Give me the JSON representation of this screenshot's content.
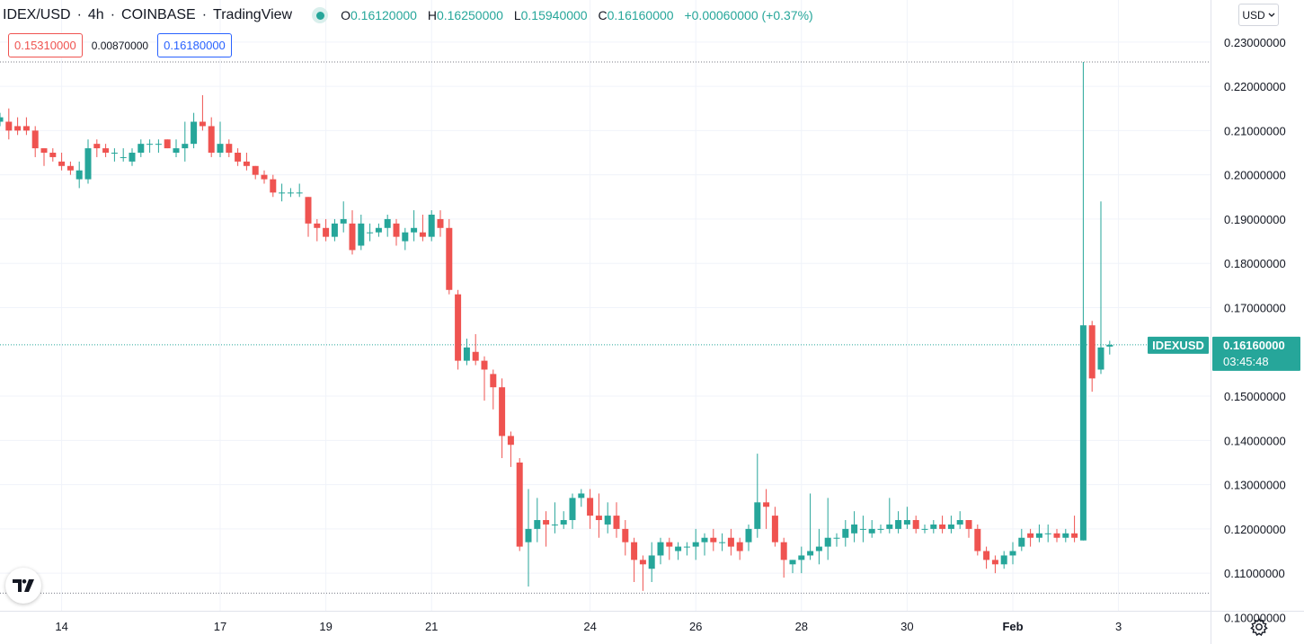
{
  "header": {
    "symbol": "IDEX/USD",
    "interval": "4h",
    "exchange": "COINBASE",
    "source": "TradingView",
    "open_label": "O",
    "open": "0.16120000",
    "high_label": "H",
    "high": "0.16250000",
    "low_label": "L",
    "low": "0.15940000",
    "close_label": "C",
    "close": "0.16160000",
    "change": "+0.00060000 (+0.37%)",
    "sep": "·"
  },
  "position": {
    "stop": "0.15310000",
    "spread": "0.00870000",
    "target": "0.16180000"
  },
  "currency": "USD",
  "price_tag": {
    "symbol": "IDEXUSD",
    "price": "0.16160000",
    "countdown": "03:45:48"
  },
  "colors": {
    "up": "#26a69a",
    "down": "#ef5350",
    "grid": "#f0f3fa",
    "axis_text": "#131722"
  },
  "icons": [
    "tradingview-logo-icon",
    "settings-gear-icon",
    "chevron-down-icon",
    "live-dot-icon"
  ],
  "chart_data": {
    "type": "candlestick",
    "title": "IDEX/USD · 4h · COINBASE",
    "ylim": [
      0.094,
      0.2395
    ],
    "y_ticks": [
      0.23,
      0.22,
      0.21,
      0.2,
      0.19,
      0.18,
      0.17,
      0.15,
      0.14,
      0.13,
      0.12,
      0.11,
      0.1
    ],
    "y_tick_labels": [
      "0.23000000",
      "0.22000000",
      "0.21000000",
      "0.20000000",
      "0.19000000",
      "0.18000000",
      "0.17000000",
      "0.15000000",
      "0.14000000",
      "0.13000000",
      "0.12000000",
      "0.11000000",
      "0.10000000"
    ],
    "x_ticks": [
      {
        "label": "14",
        "bar": 7,
        "bold": false
      },
      {
        "label": "17",
        "bar": 25,
        "bold": false
      },
      {
        "label": "19",
        "bar": 37,
        "bold": false
      },
      {
        "label": "21",
        "bar": 49,
        "bold": false
      },
      {
        "label": "24",
        "bar": 67,
        "bold": false
      },
      {
        "label": "26",
        "bar": 79,
        "bold": false
      },
      {
        "label": "28",
        "bar": 91,
        "bold": false
      },
      {
        "label": "30",
        "bar": 103,
        "bold": false
      },
      {
        "label": "Feb",
        "bar": 115,
        "bold": true
      },
      {
        "label": "3",
        "bar": 127,
        "bold": false
      }
    ],
    "ref_lines": [
      0.2255,
      0.1616,
      0.1055
    ],
    "last_price": 0.1616,
    "candles": [
      [
        0.212,
        0.214,
        0.211,
        0.213
      ],
      [
        0.212,
        0.215,
        0.208,
        0.21
      ],
      [
        0.211,
        0.213,
        0.209,
        0.21
      ],
      [
        0.211,
        0.213,
        0.209,
        0.21
      ],
      [
        0.21,
        0.211,
        0.204,
        0.206
      ],
      [
        0.206,
        0.206,
        0.202,
        0.205
      ],
      [
        0.205,
        0.206,
        0.203,
        0.204
      ],
      [
        0.203,
        0.205,
        0.201,
        0.202
      ],
      [
        0.202,
        0.203,
        0.2,
        0.201
      ],
      [
        0.199,
        0.203,
        0.197,
        0.201
      ],
      [
        0.199,
        0.208,
        0.198,
        0.206
      ],
      [
        0.207,
        0.208,
        0.204,
        0.206
      ],
      [
        0.206,
        0.207,
        0.204,
        0.205
      ],
      [
        0.205,
        0.206,
        0.203,
        0.205
      ],
      [
        0.204,
        0.206,
        0.203,
        0.204
      ],
      [
        0.203,
        0.206,
        0.202,
        0.205
      ],
      [
        0.205,
        0.208,
        0.204,
        0.207
      ],
      [
        0.207,
        0.208,
        0.205,
        0.207
      ],
      [
        0.207,
        0.208,
        0.205,
        0.207
      ],
      [
        0.208,
        0.208,
        0.206,
        0.206
      ],
      [
        0.205,
        0.208,
        0.204,
        0.206
      ],
      [
        0.206,
        0.212,
        0.203,
        0.207
      ],
      [
        0.207,
        0.214,
        0.206,
        0.212
      ],
      [
        0.212,
        0.218,
        0.21,
        0.211
      ],
      [
        0.211,
        0.213,
        0.204,
        0.205
      ],
      [
        0.205,
        0.212,
        0.204,
        0.207
      ],
      [
        0.207,
        0.208,
        0.204,
        0.205
      ],
      [
        0.205,
        0.206,
        0.202,
        0.203
      ],
      [
        0.203,
        0.205,
        0.201,
        0.202
      ],
      [
        0.202,
        0.202,
        0.199,
        0.2
      ],
      [
        0.2,
        0.201,
        0.198,
        0.199
      ],
      [
        0.199,
        0.2,
        0.195,
        0.196
      ],
      [
        0.196,
        0.198,
        0.194,
        0.196
      ],
      [
        0.196,
        0.197,
        0.195,
        0.196
      ],
      [
        0.196,
        0.198,
        0.195,
        0.196
      ],
      [
        0.195,
        0.195,
        0.186,
        0.189
      ],
      [
        0.189,
        0.19,
        0.185,
        0.188
      ],
      [
        0.188,
        0.19,
        0.185,
        0.186
      ],
      [
        0.186,
        0.19,
        0.185,
        0.189
      ],
      [
        0.189,
        0.194,
        0.187,
        0.19
      ],
      [
        0.189,
        0.192,
        0.182,
        0.183
      ],
      [
        0.184,
        0.191,
        0.183,
        0.189
      ],
      [
        0.187,
        0.189,
        0.185,
        0.187
      ],
      [
        0.187,
        0.189,
        0.186,
        0.188
      ],
      [
        0.188,
        0.191,
        0.186,
        0.19
      ],
      [
        0.189,
        0.19,
        0.184,
        0.186
      ],
      [
        0.185,
        0.188,
        0.183,
        0.187
      ],
      [
        0.187,
        0.192,
        0.185,
        0.188
      ],
      [
        0.187,
        0.191,
        0.185,
        0.186
      ],
      [
        0.186,
        0.192,
        0.185,
        0.191
      ],
      [
        0.19,
        0.192,
        0.186,
        0.188
      ],
      [
        0.188,
        0.19,
        0.173,
        0.174
      ],
      [
        0.173,
        0.174,
        0.156,
        0.158
      ],
      [
        0.158,
        0.163,
        0.157,
        0.161
      ],
      [
        0.16,
        0.164,
        0.157,
        0.158
      ],
      [
        0.158,
        0.159,
        0.149,
        0.156
      ],
      [
        0.155,
        0.156,
        0.147,
        0.152
      ],
      [
        0.152,
        0.154,
        0.136,
        0.141
      ],
      [
        0.141,
        0.142,
        0.134,
        0.139
      ],
      [
        0.135,
        0.136,
        0.115,
        0.116
      ],
      [
        0.117,
        0.129,
        0.107,
        0.12
      ],
      [
        0.12,
        0.127,
        0.117,
        0.122
      ],
      [
        0.122,
        0.124,
        0.116,
        0.121
      ],
      [
        0.121,
        0.126,
        0.119,
        0.121
      ],
      [
        0.121,
        0.124,
        0.12,
        0.122
      ],
      [
        0.122,
        0.128,
        0.12,
        0.127
      ],
      [
        0.127,
        0.129,
        0.125,
        0.128
      ],
      [
        0.127,
        0.129,
        0.12,
        0.123
      ],
      [
        0.123,
        0.128,
        0.118,
        0.122
      ],
      [
        0.121,
        0.126,
        0.119,
        0.123
      ],
      [
        0.123,
        0.126,
        0.118,
        0.12
      ],
      [
        0.12,
        0.122,
        0.114,
        0.117
      ],
      [
        0.117,
        0.118,
        0.108,
        0.113
      ],
      [
        0.113,
        0.114,
        0.106,
        0.112
      ],
      [
        0.111,
        0.117,
        0.108,
        0.114
      ],
      [
        0.114,
        0.118,
        0.112,
        0.117
      ],
      [
        0.117,
        0.118,
        0.113,
        0.116
      ],
      [
        0.115,
        0.117,
        0.113,
        0.116
      ],
      [
        0.116,
        0.117,
        0.114,
        0.116
      ],
      [
        0.116,
        0.12,
        0.113,
        0.117
      ],
      [
        0.117,
        0.119,
        0.114,
        0.118
      ],
      [
        0.118,
        0.12,
        0.115,
        0.117
      ],
      [
        0.117,
        0.119,
        0.115,
        0.117
      ],
      [
        0.118,
        0.12,
        0.114,
        0.116
      ],
      [
        0.117,
        0.118,
        0.113,
        0.115
      ],
      [
        0.117,
        0.121,
        0.115,
        0.12
      ],
      [
        0.12,
        0.137,
        0.118,
        0.126
      ],
      [
        0.126,
        0.129,
        0.12,
        0.125
      ],
      [
        0.123,
        0.125,
        0.116,
        0.117
      ],
      [
        0.117,
        0.118,
        0.109,
        0.113
      ],
      [
        0.112,
        0.113,
        0.11,
        0.113
      ],
      [
        0.113,
        0.116,
        0.11,
        0.114
      ],
      [
        0.114,
        0.128,
        0.113,
        0.115
      ],
      [
        0.115,
        0.12,
        0.112,
        0.116
      ],
      [
        0.116,
        0.127,
        0.113,
        0.118
      ],
      [
        0.118,
        0.119,
        0.116,
        0.118
      ],
      [
        0.118,
        0.122,
        0.116,
        0.12
      ],
      [
        0.119,
        0.124,
        0.117,
        0.121
      ],
      [
        0.12,
        0.123,
        0.117,
        0.12
      ],
      [
        0.119,
        0.122,
        0.118,
        0.12
      ],
      [
        0.12,
        0.121,
        0.119,
        0.12
      ],
      [
        0.12,
        0.127,
        0.119,
        0.121
      ],
      [
        0.12,
        0.124,
        0.119,
        0.122
      ],
      [
        0.121,
        0.125,
        0.12,
        0.122
      ],
      [
        0.122,
        0.123,
        0.119,
        0.12
      ],
      [
        0.12,
        0.121,
        0.119,
        0.12
      ],
      [
        0.12,
        0.122,
        0.119,
        0.121
      ],
      [
        0.121,
        0.123,
        0.119,
        0.12
      ],
      [
        0.12,
        0.123,
        0.119,
        0.121
      ],
      [
        0.121,
        0.124,
        0.12,
        0.122
      ],
      [
        0.122,
        0.122,
        0.118,
        0.12
      ],
      [
        0.12,
        0.121,
        0.114,
        0.115
      ],
      [
        0.115,
        0.116,
        0.111,
        0.113
      ],
      [
        0.113,
        0.114,
        0.11,
        0.112
      ],
      [
        0.112,
        0.115,
        0.111,
        0.114
      ],
      [
        0.114,
        0.117,
        0.112,
        0.115
      ],
      [
        0.116,
        0.12,
        0.115,
        0.118
      ],
      [
        0.119,
        0.12,
        0.116,
        0.118
      ],
      [
        0.118,
        0.121,
        0.117,
        0.119
      ],
      [
        0.119,
        0.121,
        0.117,
        0.119
      ],
      [
        0.119,
        0.12,
        0.117,
        0.118
      ],
      [
        0.118,
        0.12,
        0.117,
        0.119
      ],
      [
        0.119,
        0.123,
        0.117,
        0.118
      ],
      [
        0.1174,
        0.2255,
        0.1174,
        0.166
      ],
      [
        0.166,
        0.167,
        0.151,
        0.154
      ],
      [
        0.156,
        0.194,
        0.155,
        0.161
      ],
      [
        0.1612,
        0.1625,
        0.1594,
        0.1616
      ]
    ]
  }
}
